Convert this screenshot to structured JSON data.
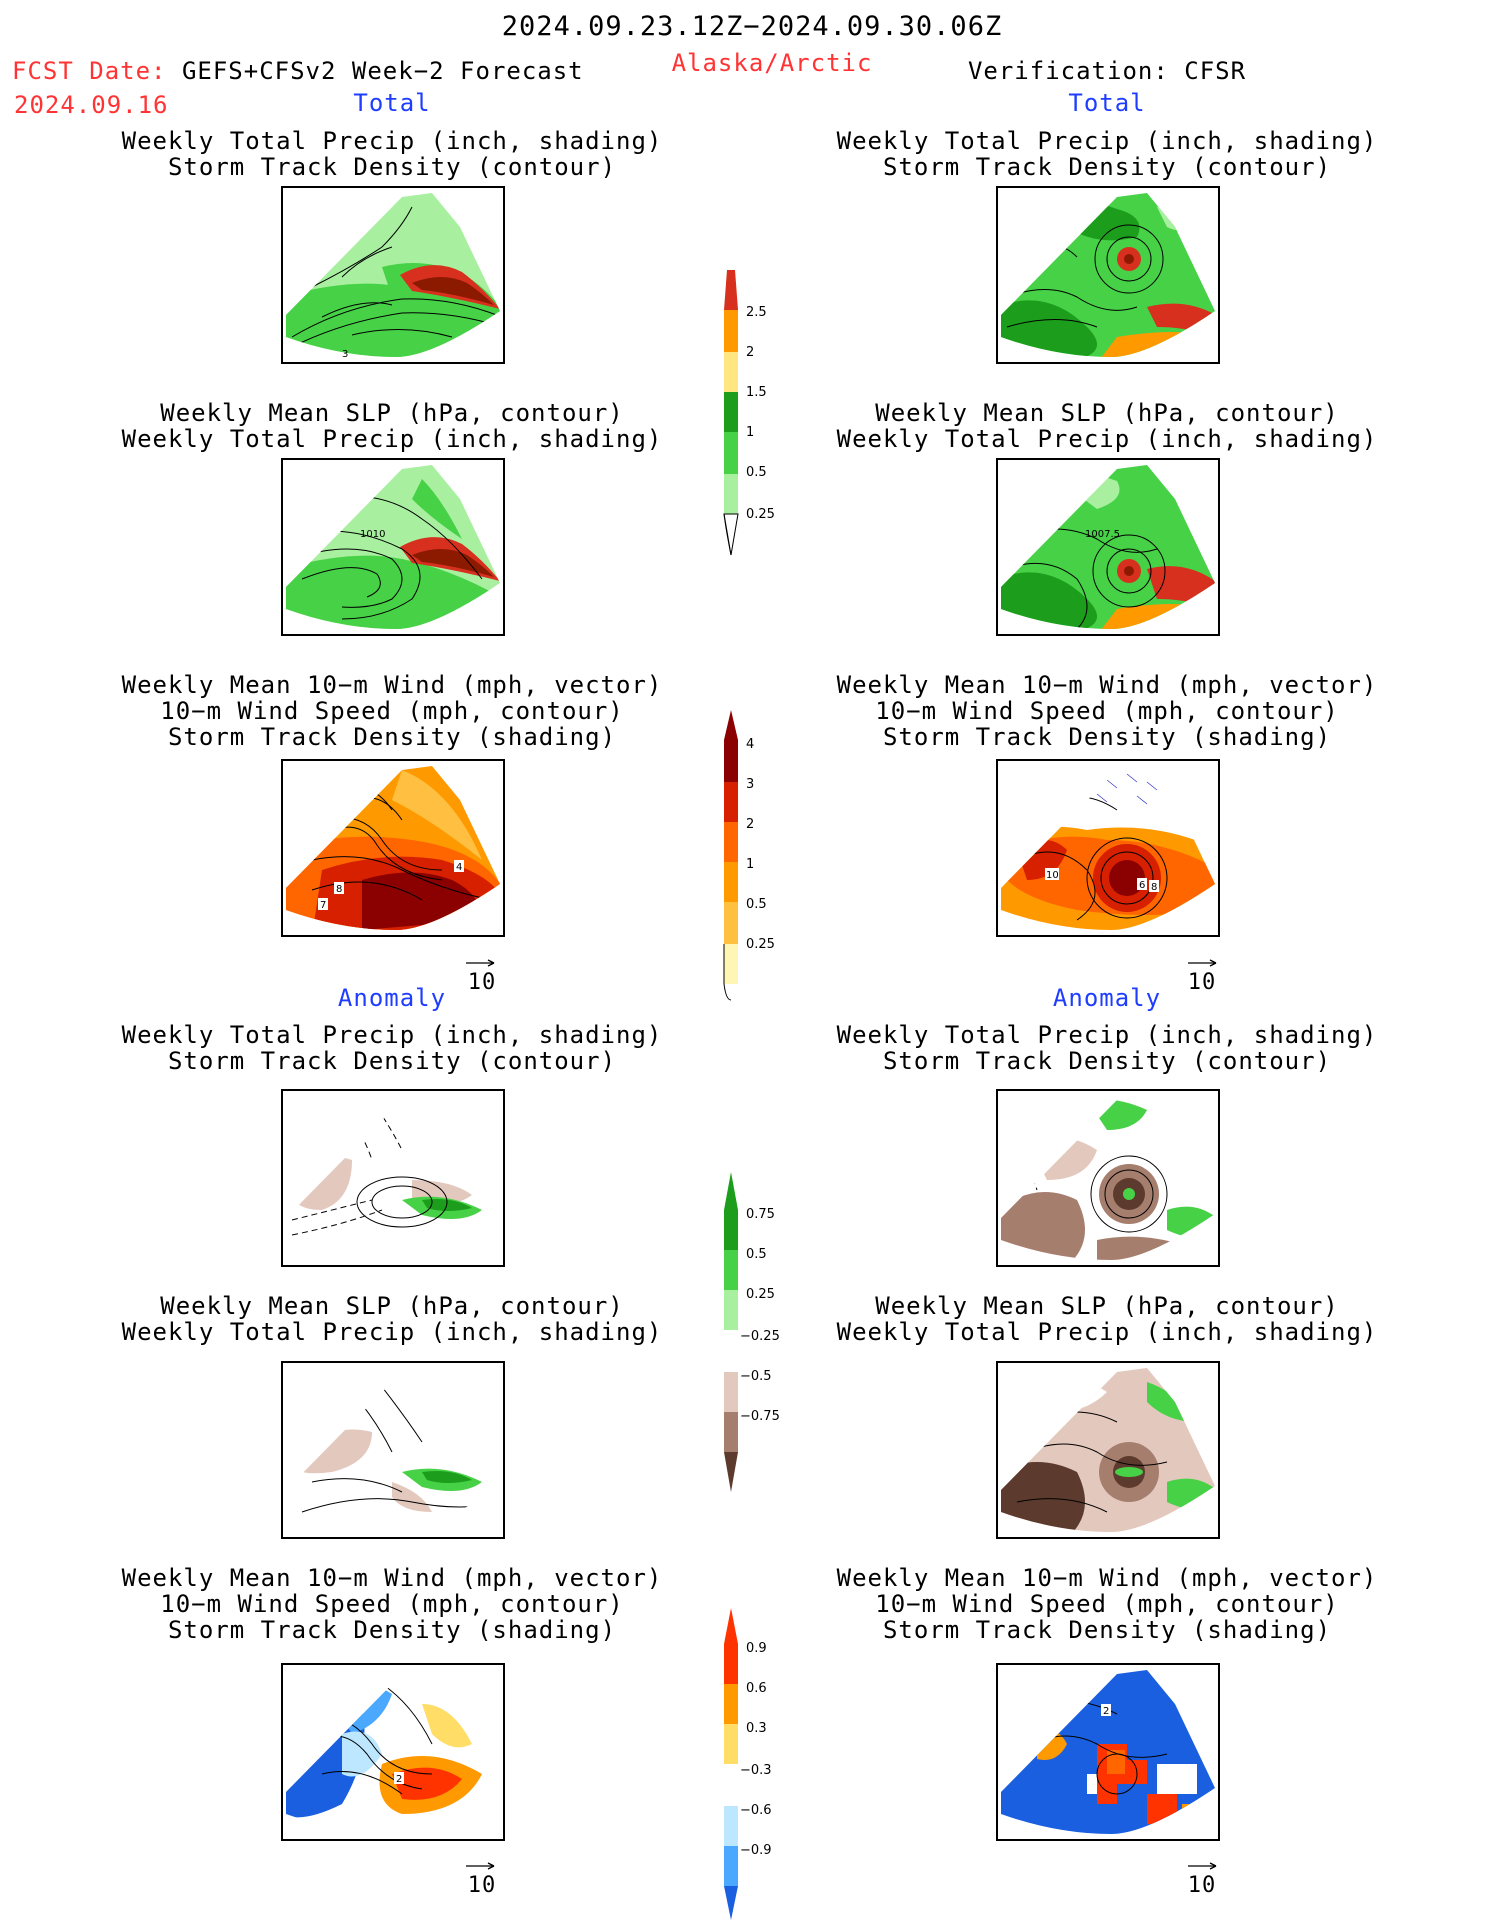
{
  "header": {
    "period": "2024.09.23.12Z−2024.09.30.06Z",
    "fcst_label": "FCST Date:",
    "fcst_model": "GEFS+CFSv2 Week−2 Forecast",
    "fcst_date": "2024.09.16",
    "region": "Alaska/Arctic",
    "verification": "Verification: CFSR"
  },
  "sections": {
    "total": "Total",
    "anomaly": "Anomaly"
  },
  "titles": {
    "precip_storm": [
      "Weekly Total Precip (inch, shading)",
      "Storm Track Density (contour)"
    ],
    "slp_precip": [
      "Weekly Mean SLP (hPa, contour)",
      "Weekly Total Precip (inch, shading)"
    ],
    "wind": [
      "Weekly Mean 10−m Wind (mph, vector)",
      "10−m Wind Speed (mph, contour)",
      "Storm Track Density (shading)"
    ]
  },
  "map_labels": {
    "fcst_storm_contour": "3",
    "fcst_slp_contour": "1010",
    "verif_slp_contour": "1007.5",
    "fcst_wind": [
      "8",
      "7",
      "4"
    ],
    "verif_wind": [
      "10",
      "6",
      "8"
    ],
    "fcst_wind_anom": "2",
    "verif_wind_anom": "2"
  },
  "vector_reference": "10",
  "colorbars": {
    "precip_total": {
      "labels": [
        "2.5",
        "2",
        "1.5",
        "1",
        "0.5",
        "0.25"
      ],
      "colors": [
        "#d7301f",
        "#ff9900",
        "#ffe680",
        "#1c9e1c",
        "#47d147",
        "#a8f0a0"
      ]
    },
    "storm_total": {
      "labels": [
        "4",
        "3",
        "2",
        "1",
        "0.5",
        "0.25"
      ],
      "colors": [
        "#8b0000",
        "#d62000",
        "#ff6600",
        "#ff9900",
        "#ffbf40",
        "#ffe680",
        "#fff6b3"
      ]
    },
    "precip_anomaly": {
      "labels": [
        "0.75",
        "0.5",
        "0.25",
        "−0.25",
        "−0.5",
        "−0.75"
      ],
      "colors": [
        "#1c9e1c",
        "#47d147",
        "#a8f0a0",
        "#ffffff",
        "#e3c8bd",
        "#a67e6e",
        "#5c3a2e"
      ]
    },
    "storm_anomaly": {
      "labels": [
        "0.9",
        "0.6",
        "0.3",
        "−0.3",
        "−0.6",
        "−0.9"
      ],
      "colors": [
        "#ff3300",
        "#ff9900",
        "#ffdd66",
        "#ffffff",
        "#bde6ff",
        "#4aa8ff",
        "#1a5fe0"
      ]
    }
  }
}
